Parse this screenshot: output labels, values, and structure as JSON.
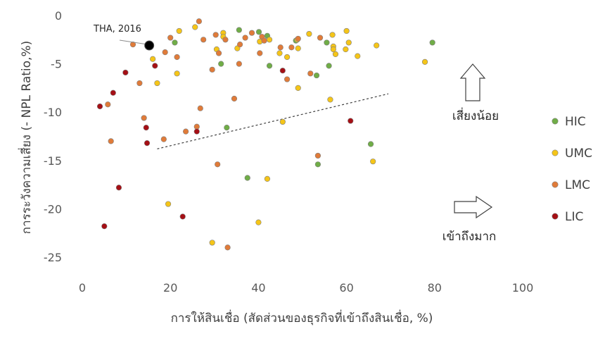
{
  "chart_data": {
    "type": "scatter",
    "xlabel": "การให้สินเชื่อ (สัดส่วนของธุรกิจที่เข้าถึงสินเชื่อ, %)",
    "ylabel": "การระวังความเสี่ยง (- NPL Ratio,%)",
    "xlim": [
      0,
      100
    ],
    "ylim": [
      -25,
      0
    ],
    "x_ticks": [
      "0",
      "20",
      "40",
      "60",
      "80",
      "100"
    ],
    "y_ticks": [
      "0",
      "-5",
      "-10",
      "-15",
      "-20",
      "-25"
    ],
    "grid": false,
    "legend_position": "right",
    "series": [
      {
        "name": "HIC",
        "color": "#70ad47",
        "points": [
          [
            21,
            -2.8
          ],
          [
            31.5,
            -5
          ],
          [
            32.8,
            -11.6
          ],
          [
            35.6,
            -1.5
          ],
          [
            37.5,
            -16.8
          ],
          [
            40.1,
            -1.7
          ],
          [
            42,
            -2.1
          ],
          [
            42.5,
            -5.2
          ],
          [
            48.5,
            -2.6
          ],
          [
            53.2,
            -6.2
          ],
          [
            53.5,
            -15.4
          ],
          [
            55.5,
            -2.8
          ],
          [
            56,
            -5.2
          ],
          [
            65.5,
            -13.3
          ],
          [
            79.5,
            -2.8
          ]
        ]
      },
      {
        "name": "UMC",
        "color": "#f5c518",
        "points": [
          [
            16,
            -4.5
          ],
          [
            17,
            -7
          ],
          [
            19.5,
            -19.5
          ],
          [
            21.5,
            -6
          ],
          [
            22,
            -1.6
          ],
          [
            25.6,
            -1.2
          ],
          [
            29.5,
            -23.5
          ],
          [
            30.5,
            -3.5
          ],
          [
            32,
            -1.8
          ],
          [
            32,
            -2.2
          ],
          [
            35.2,
            -3.4
          ],
          [
            40,
            -21.4
          ],
          [
            40.3,
            -2.7
          ],
          [
            42,
            -16.9
          ],
          [
            42.5,
            -2.5
          ],
          [
            44.8,
            -3.9
          ],
          [
            45.5,
            -11
          ],
          [
            46.5,
            -4.3
          ],
          [
            48.8,
            -2.5
          ],
          [
            49,
            -3.4
          ],
          [
            49,
            -7.5
          ],
          [
            51.5,
            -1.9
          ],
          [
            56.3,
            -8.7
          ],
          [
            56.8,
            -2
          ],
          [
            57,
            -3.2
          ],
          [
            57,
            -3.5
          ],
          [
            57.5,
            -4
          ],
          [
            59.8,
            -3.5
          ],
          [
            60,
            -1.6
          ],
          [
            60.5,
            -2.8
          ],
          [
            62.5,
            -4.2
          ],
          [
            66,
            -15.1
          ],
          [
            66.8,
            -3.1
          ],
          [
            77.8,
            -4.8
          ]
        ]
      },
      {
        "name": "LMC",
        "color": "#e07b39",
        "points": [
          [
            5.8,
            -9.2
          ],
          [
            6.5,
            -13
          ],
          [
            11.5,
            -3
          ],
          [
            13,
            -7
          ],
          [
            14,
            -10.6
          ],
          [
            18.5,
            -12.8
          ],
          [
            18.8,
            -3.8
          ],
          [
            20,
            -2.3
          ],
          [
            21.5,
            -4.3
          ],
          [
            23.5,
            -12
          ],
          [
            26,
            -11.5
          ],
          [
            26.5,
            -0.6
          ],
          [
            26.8,
            -9.6
          ],
          [
            27.5,
            -2.5
          ],
          [
            29.5,
            -5.6
          ],
          [
            30.3,
            -2
          ],
          [
            30.7,
            -15.4
          ],
          [
            31,
            -3.9
          ],
          [
            32.5,
            -2.5
          ],
          [
            33,
            -24
          ],
          [
            34.5,
            -8.6
          ],
          [
            35.6,
            -5
          ],
          [
            35.8,
            -3
          ],
          [
            37,
            -2.3
          ],
          [
            38.5,
            -1.8
          ],
          [
            40.3,
            -3.9
          ],
          [
            40.8,
            -2.2
          ],
          [
            41.3,
            -2.6
          ],
          [
            45,
            -3.3
          ],
          [
            46.5,
            -6.6
          ],
          [
            47.5,
            -3.3
          ],
          [
            49,
            -2.4
          ],
          [
            51.8,
            -6
          ],
          [
            53.5,
            -14.5
          ],
          [
            54,
            -2.3
          ]
        ]
      },
      {
        "name": "LIC",
        "color": "#a50f15",
        "points": [
          [
            4,
            -9.4
          ],
          [
            5,
            -21.8
          ],
          [
            7,
            -8
          ],
          [
            8.3,
            -17.8
          ],
          [
            9.8,
            -5.9
          ],
          [
            14.5,
            -11.6
          ],
          [
            14.7,
            -13.2
          ],
          [
            16.5,
            -5.2
          ],
          [
            22.8,
            -20.8
          ],
          [
            26,
            -12
          ],
          [
            45.5,
            -5.7
          ],
          [
            60.9,
            -10.9
          ]
        ]
      }
    ],
    "highlight": {
      "label": "THA, 2016",
      "x": 15.2,
      "y": -3.1,
      "color": "#000000"
    },
    "trendline": {
      "x": [
        17,
        69.5
      ],
      "y": [
        -13.8,
        -8.1
      ],
      "style": "dashed"
    },
    "annotations": {
      "up_label": "เสี่ยงน้อย",
      "right_label": "เข้าถึงมาก"
    }
  }
}
